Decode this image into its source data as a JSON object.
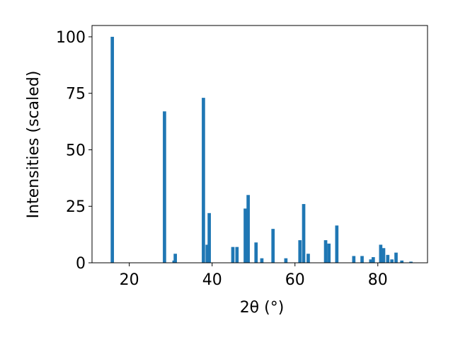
{
  "chart_data": {
    "type": "bar",
    "xlabel": "2θ (°)",
    "ylabel": "Intensities (scaled)",
    "x": [
      15.9,
      28.5,
      30.8,
      31.1,
      37.9,
      38.8,
      39.3,
      45.0,
      46.0,
      48.0,
      48.7,
      50.6,
      52.0,
      54.7,
      57.8,
      61.2,
      62.1,
      63.2,
      67.4,
      68.2,
      70.1,
      74.2,
      76.2,
      78.3,
      78.9,
      80.7,
      81.4,
      82.4,
      83.4,
      84.4,
      85.8,
      88.0
    ],
    "values": [
      100,
      67,
      1,
      4,
      73,
      8,
      22,
      7,
      7,
      24,
      30,
      9,
      2,
      15,
      2,
      10,
      26,
      4,
      10,
      8.5,
      16.5,
      3,
      3,
      1.5,
      2.5,
      8,
      6.5,
      3.5,
      1.5,
      4.5,
      1,
      0.5
    ],
    "color": "#1f77b4",
    "xlim": [
      11,
      92
    ],
    "ylim": [
      0,
      105
    ],
    "xticks": [
      20,
      40,
      60,
      80
    ],
    "yticks": [
      0,
      25,
      50,
      75,
      100
    ]
  }
}
